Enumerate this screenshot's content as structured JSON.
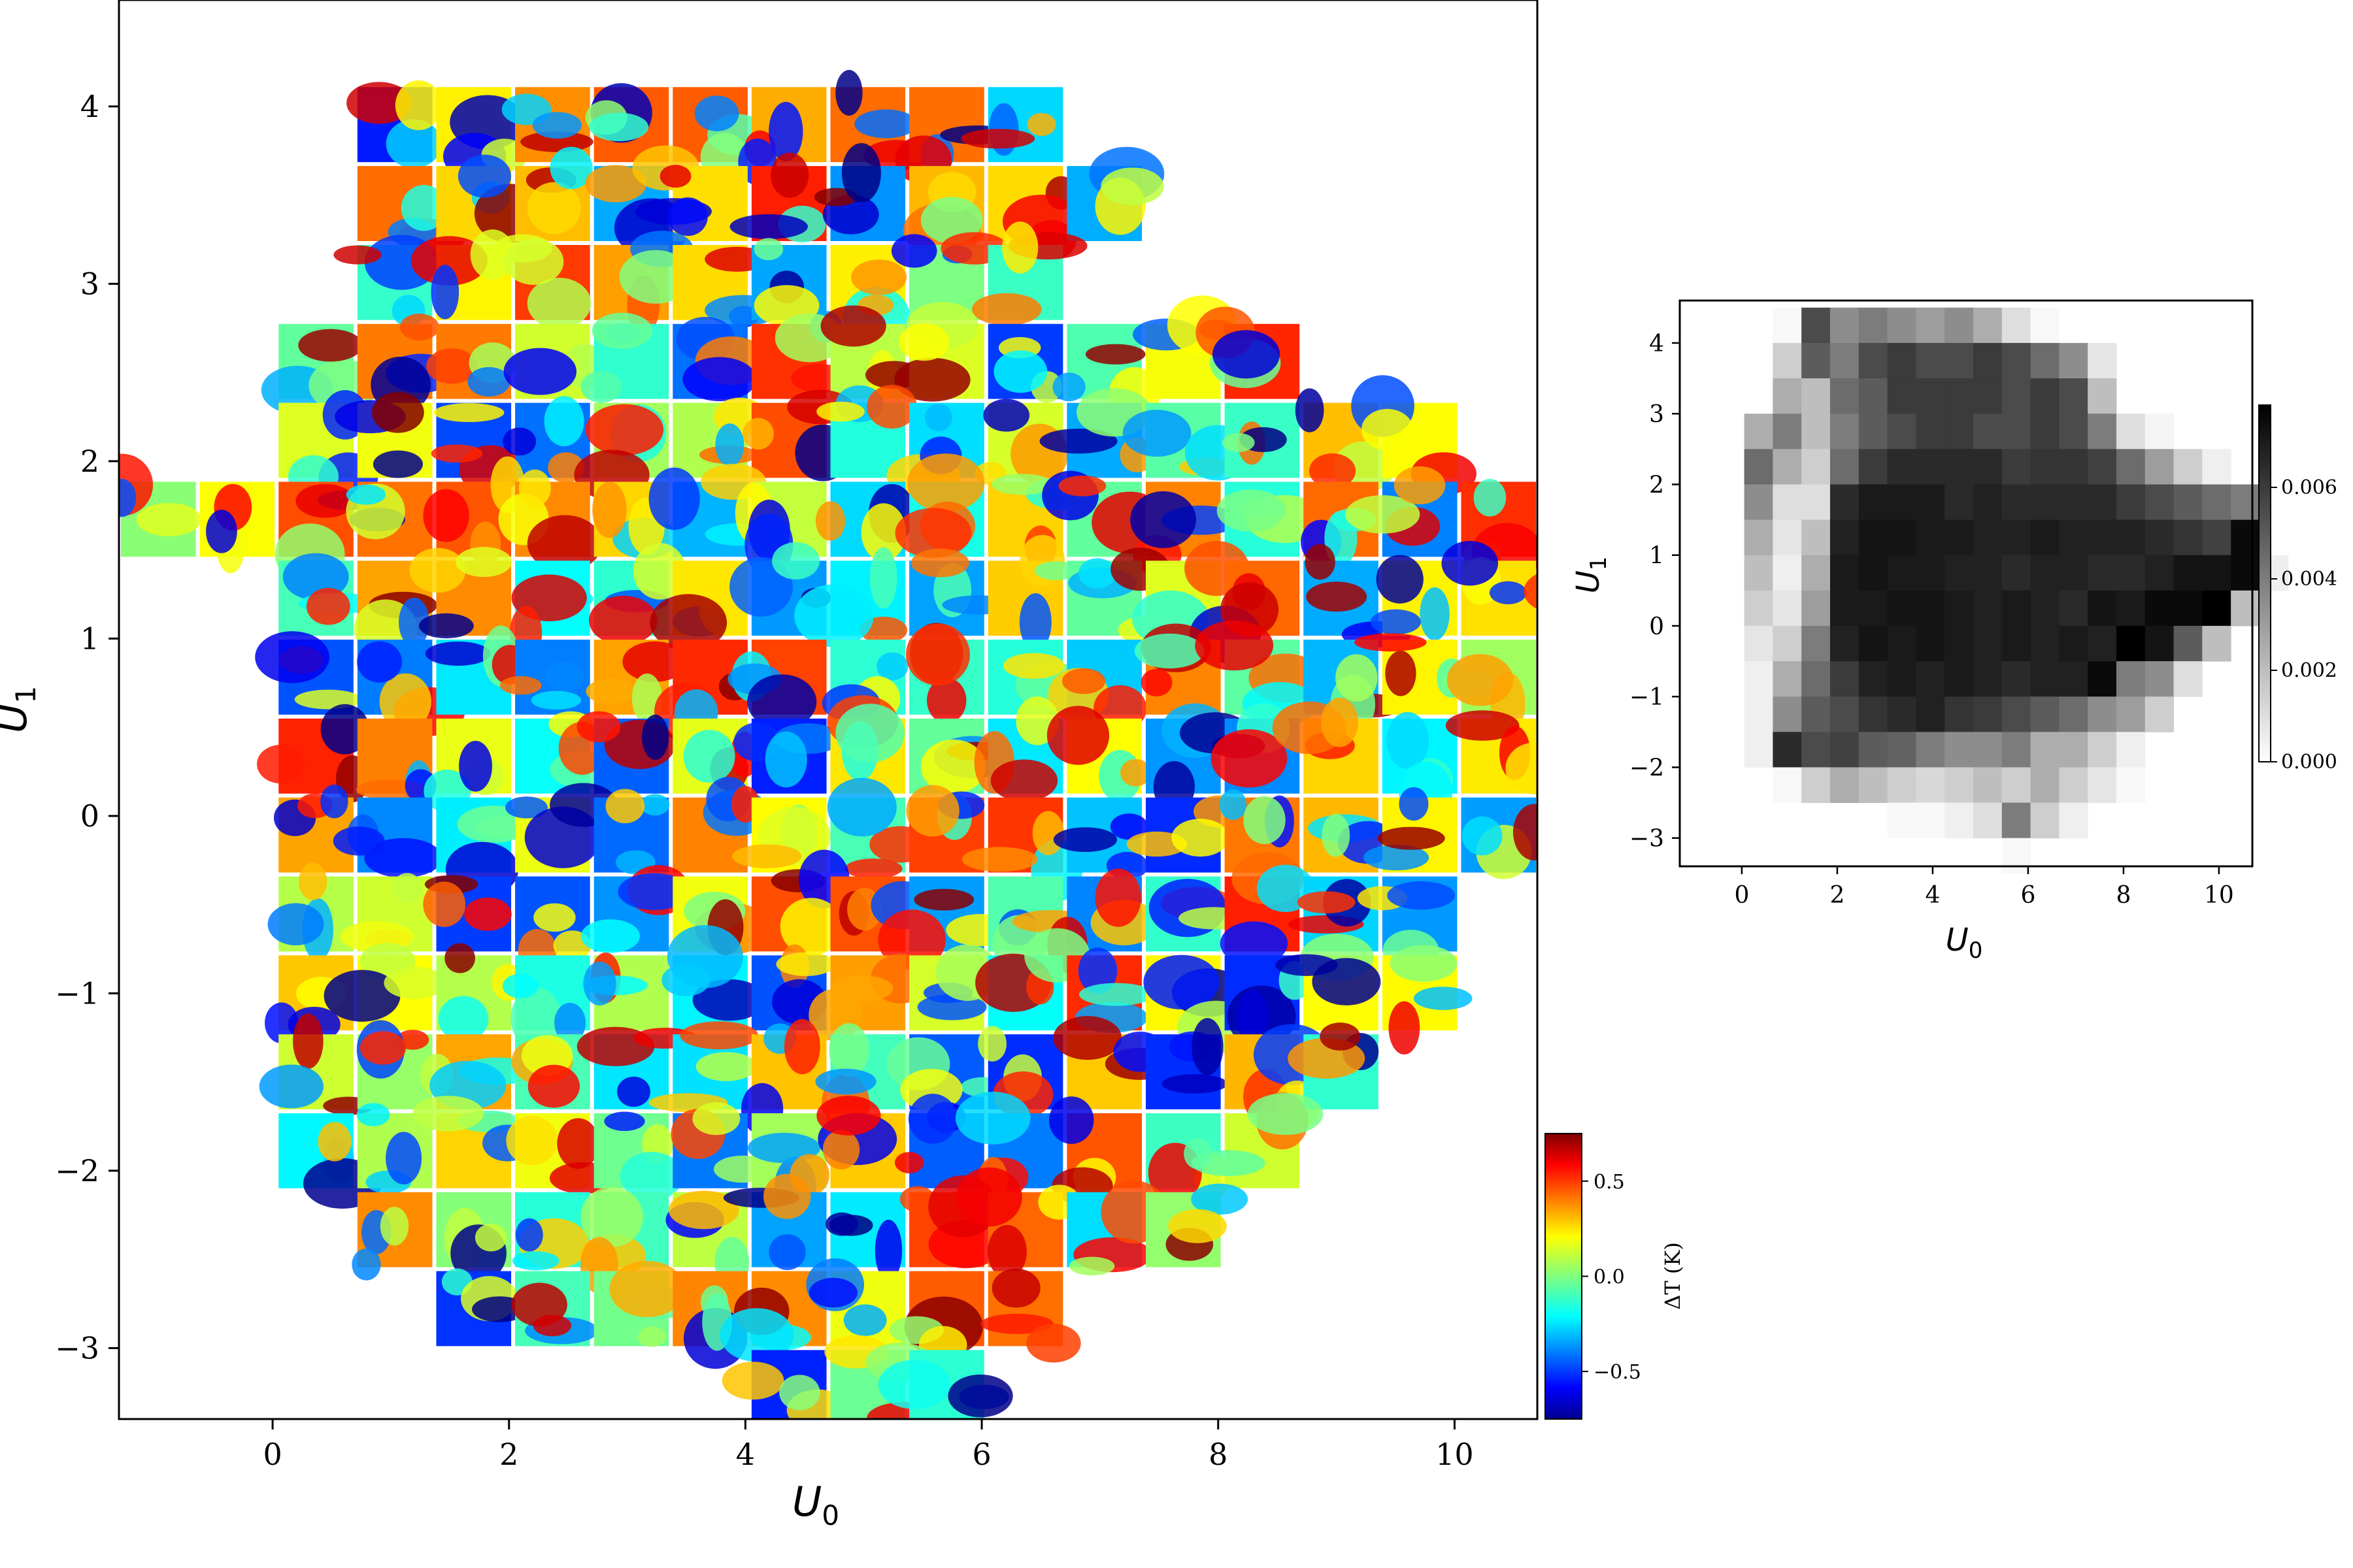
{
  "chart_data": [
    {
      "type": "heatmap",
      "title": "",
      "xlabel": "U",
      "xlabel_sub": "0",
      "ylabel": "U",
      "ylabel_sub": "1",
      "xlim": [
        -1.3,
        10.7
      ],
      "ylim": [
        -3.4,
        4.6
      ],
      "xticks": [
        0,
        2,
        4,
        6,
        8,
        10
      ],
      "yticks": [
        4,
        3,
        2,
        1,
        0,
        -1,
        -2,
        -3
      ],
      "ytick_labels": [
        "4",
        "3",
        "2",
        "1",
        "0",
        "−1",
        "−2",
        "−3"
      ],
      "tile_grid": {
        "x0_of_column_0": -1.3,
        "column_width": 0.667,
        "y_top_of_row_0": 4.12,
        "row_height": 0.445,
        "rows": [
          [
            3,
            11
          ],
          [
            3,
            12
          ],
          [
            3,
            11
          ],
          [
            2,
            14
          ],
          [
            2,
            16
          ],
          [
            0,
            17
          ],
          [
            2,
            18
          ],
          [
            2,
            17
          ],
          [
            2,
            17
          ],
          [
            2,
            17
          ],
          [
            2,
            16
          ],
          [
            2,
            16
          ],
          [
            2,
            15
          ],
          [
            2,
            14
          ],
          [
            3,
            13
          ],
          [
            4,
            11
          ],
          [
            8,
            10
          ]
        ]
      },
      "colormap": "jet",
      "colorbar": {
        "label": "ΔT (K)",
        "ticks": [
          0.5,
          0.0,
          -0.5
        ],
        "tick_labels": [
          "0.5",
          "0.0",
          "−0.5"
        ],
        "range": [
          -0.75,
          0.75
        ]
      }
    },
    {
      "type": "heatmap",
      "title": "",
      "xlabel": "U",
      "xlabel_sub": "0",
      "ylabel": "U",
      "ylabel_sub": "1",
      "xlim": [
        -1.3,
        10.7
      ],
      "ylim": [
        -3.4,
        4.6
      ],
      "xticks": [
        0,
        2,
        4,
        6,
        8,
        10
      ],
      "yticks": [
        4,
        3,
        2,
        1,
        0,
        -1,
        -2,
        -3
      ],
      "ytick_labels": [
        "4",
        "3",
        "2",
        "1",
        "0",
        "−1",
        "−2",
        "−3"
      ],
      "bins": {
        "x0_of_column_0": -0.55,
        "column_width": 0.6,
        "y_top_of_row_0": 4.5,
        "row_height": 0.5,
        "rows": [
          [
            0,
            0,
            0.0002,
            0.0055,
            0.0035,
            0.004,
            0.0035,
            0.003,
            0.0035,
            0.0025,
            0.001,
            0.0002,
            0,
            0,
            0,
            0,
            0,
            0,
            0,
            0
          ],
          [
            0,
            0,
            0.0015,
            0.005,
            0.004,
            0.0055,
            0.006,
            0.0055,
            0.0055,
            0.006,
            0.0055,
            0.0045,
            0.0035,
            0.0008,
            0,
            0,
            0,
            0,
            0,
            0
          ],
          [
            0,
            0,
            0.0025,
            0.002,
            0.0045,
            0.005,
            0.006,
            0.006,
            0.006,
            0.006,
            0.0055,
            0.006,
            0.0055,
            0.002,
            0,
            0,
            0,
            0,
            0,
            0
          ],
          [
            0,
            0.0025,
            0.004,
            0.002,
            0.004,
            0.005,
            0.0055,
            0.006,
            0.006,
            0.0055,
            0.0055,
            0.006,
            0.0055,
            0.004,
            0.001,
            0.0003,
            0,
            0,
            0,
            0
          ],
          [
            0,
            0.0045,
            0.0025,
            0.0015,
            0.0045,
            0.006,
            0.0065,
            0.0065,
            0.0065,
            0.0065,
            0.006,
            0.0062,
            0.0062,
            0.0058,
            0.0045,
            0.003,
            0.0015,
            0.0005,
            0,
            0
          ],
          [
            0,
            0.0035,
            0.001,
            0.001,
            0.0065,
            0.007,
            0.007,
            0.007,
            0.0065,
            0.0068,
            0.0065,
            0.0065,
            0.0065,
            0.0065,
            0.006,
            0.0055,
            0.005,
            0.0045,
            0.004,
            0
          ],
          [
            0,
            0.0025,
            0.0008,
            0.002,
            0.0068,
            0.0072,
            0.0072,
            0.007,
            0.007,
            0.0068,
            0.0068,
            0.007,
            0.0068,
            0.0068,
            0.0068,
            0.0065,
            0.0062,
            0.0058,
            0.0075,
            0
          ],
          [
            0,
            0.002,
            0.0005,
            0.0025,
            0.007,
            0.0072,
            0.007,
            0.007,
            0.0068,
            0.0068,
            0.0065,
            0.0068,
            0.0068,
            0.0065,
            0.0065,
            0.0068,
            0.0072,
            0.0072,
            0.0075,
            0.0005
          ],
          [
            0,
            0.0015,
            0.0008,
            0.003,
            0.007,
            0.007,
            0.0072,
            0.0072,
            0.007,
            0.0068,
            0.007,
            0.0068,
            0.0065,
            0.0072,
            0.007,
            0.0075,
            0.0075,
            0.0078,
            0.002,
            0
          ],
          [
            0,
            0.0008,
            0.0015,
            0.004,
            0.0068,
            0.0072,
            0.007,
            0.0072,
            0.007,
            0.0068,
            0.007,
            0.0068,
            0.007,
            0.0068,
            0.0078,
            0.0072,
            0.005,
            0.002,
            0,
            0
          ],
          [
            0,
            0.0005,
            0.0025,
            0.0045,
            0.006,
            0.0068,
            0.007,
            0.0068,
            0.007,
            0.0068,
            0.0065,
            0.0068,
            0.0068,
            0.0075,
            0.004,
            0.0035,
            0.001,
            0,
            0,
            0
          ],
          [
            0,
            0.0005,
            0.0035,
            0.005,
            0.0055,
            0.0062,
            0.0065,
            0.0068,
            0.0062,
            0.006,
            0.0055,
            0.005,
            0.0045,
            0.0035,
            0.003,
            0.0015,
            0,
            0,
            0,
            0
          ],
          [
            0,
            0.0005,
            0.0065,
            0.0055,
            0.0058,
            0.005,
            0.0048,
            0.004,
            0.0035,
            0.0035,
            0.004,
            0.0025,
            0.0025,
            0.0015,
            0.0005,
            0,
            0,
            0,
            0,
            0
          ],
          [
            0,
            0,
            0.0002,
            0.0015,
            0.0025,
            0.002,
            0.0015,
            0.0012,
            0.0015,
            0.002,
            0.0015,
            0.0025,
            0.0015,
            0.0008,
            0.0002,
            0,
            0,
            0,
            0,
            0
          ],
          [
            0,
            0,
            0,
            0,
            0,
            0,
            0.0002,
            0.0002,
            0.0005,
            0.001,
            0.004,
            0.0015,
            0.0005,
            0,
            0,
            0,
            0,
            0,
            0,
            0
          ],
          [
            0,
            0,
            0,
            0,
            0,
            0,
            0,
            0,
            0,
            0,
            0.0002,
            0,
            0,
            0,
            0,
            0,
            0,
            0,
            0,
            0
          ]
        ]
      },
      "colormap": "gray_r",
      "colorbar": {
        "label": "",
        "ticks": [
          0.006,
          0.004,
          0.002,
          0.0
        ],
        "tick_labels": [
          "0.006",
          "0.004",
          "0.002",
          "0.000"
        ],
        "range": [
          0,
          0.0078
        ]
      }
    }
  ]
}
